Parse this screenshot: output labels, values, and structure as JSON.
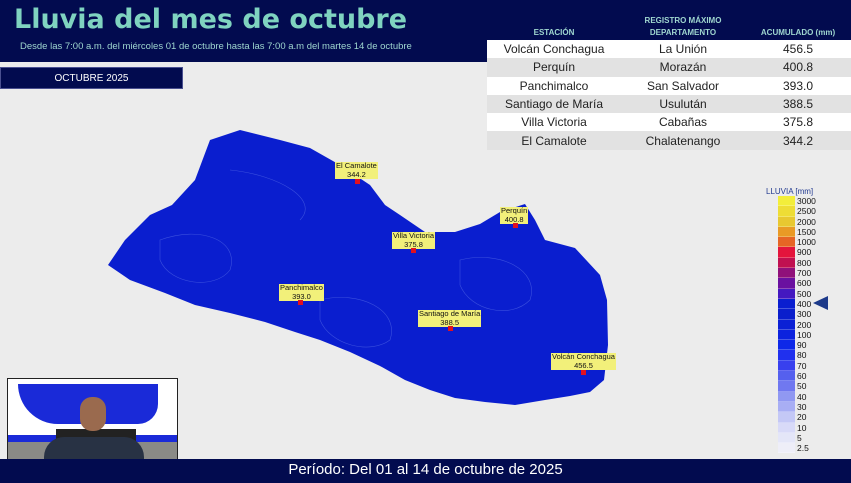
{
  "header": {
    "title": "Lluvia del mes de octubre",
    "subtitle": "Desde las 7:00 a.m. del miércoles 01 de octubre hasta las 7:00 a.m del martes 14 de octubre"
  },
  "month_badge": "OCTUBRE 2025",
  "table": {
    "headers": {
      "station": "ESTACIÓN",
      "top": "REGISTRO MÁXIMO",
      "dept": "DEPARTAMENTO",
      "acc": "ACUMULADO (mm)"
    },
    "rows": [
      {
        "station": "Volcán Conchagua",
        "dept": "La Unión",
        "acc": "456.5"
      },
      {
        "station": "Perquín",
        "dept": "Morazán",
        "acc": "400.8"
      },
      {
        "station": "Panchimalco",
        "dept": "San Salvador",
        "acc": "393.0"
      },
      {
        "station": "Santiago de María",
        "dept": "Usulután",
        "acc": "388.5"
      },
      {
        "station": "Villa Victoria",
        "dept": "Cabañas",
        "acc": "375.8"
      },
      {
        "station": "El Camalote",
        "dept": "Chalatenango",
        "acc": "344.2"
      }
    ]
  },
  "map_labels": [
    {
      "name": "El Camalote",
      "value": "344.2"
    },
    {
      "name": "Perquín",
      "value": "400.8"
    },
    {
      "name": "Villa Victoria",
      "value": "375.8"
    },
    {
      "name": "Panchimalco",
      "value": "393.0"
    },
    {
      "name": "Santiago de María",
      "value": "388.5"
    },
    {
      "name": "Volcán Conchagua",
      "value": "456.5"
    }
  ],
  "map_color": "#0a1ecf",
  "legend": {
    "title": "LLUVIA [mm]",
    "indicator_value": "450",
    "items": [
      {
        "label": "3000",
        "color": "#f3ee3a"
      },
      {
        "label": "2500",
        "color": "#eedd35"
      },
      {
        "label": "2000",
        "color": "#e8c830"
      },
      {
        "label": "1500",
        "color": "#e99a25"
      },
      {
        "label": "1000",
        "color": "#e66525"
      },
      {
        "label": "900",
        "color": "#e4143c"
      },
      {
        "label": "800",
        "color": "#c01050"
      },
      {
        "label": "700",
        "color": "#90107a"
      },
      {
        "label": "600",
        "color": "#6a10a0"
      },
      {
        "label": "500",
        "color": "#4418c0"
      },
      {
        "label": "400",
        "color": "#0a1ed0"
      },
      {
        "label": "300",
        "color": "#0a1ecc"
      },
      {
        "label": "200",
        "color": "#0b20d5"
      },
      {
        "label": "100",
        "color": "#0c22de"
      },
      {
        "label": "90",
        "color": "#0e28e8"
      },
      {
        "label": "80",
        "color": "#2030ee"
      },
      {
        "label": "70",
        "color": "#3840ee"
      },
      {
        "label": "60",
        "color": "#5560ee"
      },
      {
        "label": "50",
        "color": "#7078f0"
      },
      {
        "label": "40",
        "color": "#9098f2"
      },
      {
        "label": "30",
        "color": "#a8aef4"
      },
      {
        "label": "20",
        "color": "#c4c8f6"
      },
      {
        "label": "10",
        "color": "#d8daf8"
      },
      {
        "label": "5",
        "color": "#e4e6f8"
      },
      {
        "label": "2.5",
        "color": "#eeeef8"
      }
    ]
  },
  "footer": "Período:  Del 01 al 14 de octubre de 2025"
}
